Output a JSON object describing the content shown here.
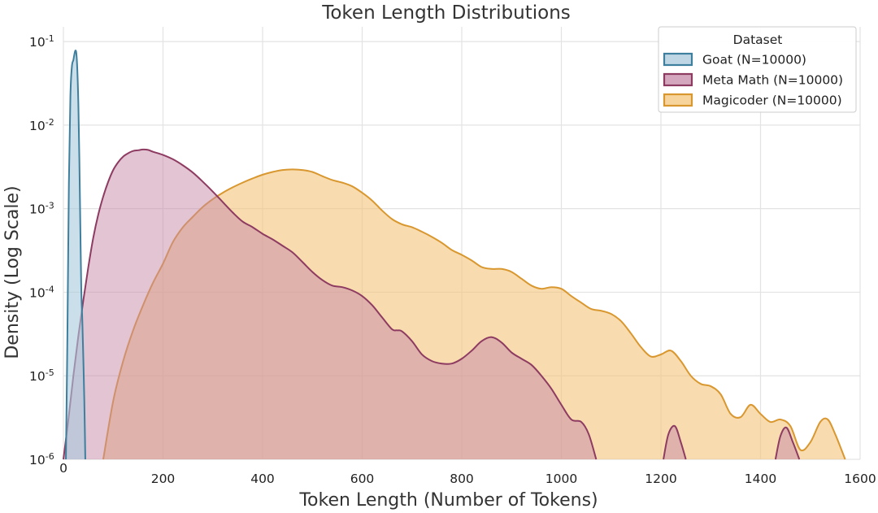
{
  "chart_data": {
    "type": "area",
    "title": "Token Length Distributions",
    "xlabel": "Token Length (Number of Tokens)",
    "ylabel": "Density (Log Scale)",
    "xlim": [
      0,
      1600
    ],
    "ylim": [
      1e-06,
      0.15
    ],
    "yscale": "log",
    "grid": true,
    "x_ticks": [
      0,
      200,
      400,
      600,
      800,
      1000,
      1200,
      1400,
      1600
    ],
    "x_tick_labels": [
      "0",
      "200",
      "400",
      "600",
      "800",
      "1000",
      "1200",
      "1400",
      "1600"
    ],
    "y_ticks": [
      1e-06,
      1e-05,
      0.0001,
      0.001,
      0.01,
      0.1
    ],
    "y_tick_labels": [
      {
        "base": "10",
        "exp": "-6"
      },
      {
        "base": "10",
        "exp": "-5"
      },
      {
        "base": "10",
        "exp": "-4"
      },
      {
        "base": "10",
        "exp": "-3"
      },
      {
        "base": "10",
        "exp": "-2"
      },
      {
        "base": "10",
        "exp": "-1"
      }
    ],
    "legend": {
      "title": "Dataset",
      "position": "top-right",
      "entries": [
        "Goat (N=10000)",
        "Meta Math (N=10000)",
        "Magicoder (N=10000)"
      ]
    },
    "series": [
      {
        "name": "Magicoder (N=10000)",
        "line_color": "#d9972f",
        "fill_color": "#f3c57a",
        "fill_opacity": 0.6,
        "segments": [
          [
            [
              80,
              1e-06
            ],
            [
              100,
              5e-06
            ],
            [
              120,
              1.5e-05
            ],
            [
              140,
              3.5e-05
            ],
            [
              160,
              7e-05
            ],
            [
              180,
              0.00013
            ],
            [
              200,
              0.00022
            ],
            [
              220,
              0.0004
            ],
            [
              240,
              0.0006
            ],
            [
              260,
              0.0008
            ],
            [
              280,
              0.00105
            ],
            [
              300,
              0.0013
            ],
            [
              320,
              0.00155
            ],
            [
              340,
              0.0018
            ],
            [
              360,
              0.00205
            ],
            [
              380,
              0.0023
            ],
            [
              400,
              0.00255
            ],
            [
              420,
              0.00275
            ],
            [
              440,
              0.0029
            ],
            [
              460,
              0.00295
            ],
            [
              480,
              0.0029
            ],
            [
              500,
              0.00275
            ],
            [
              520,
              0.00245
            ],
            [
              540,
              0.0022
            ],
            [
              560,
              0.00205
            ],
            [
              580,
              0.00185
            ],
            [
              600,
              0.00155
            ],
            [
              620,
              0.00125
            ],
            [
              640,
              0.00095
            ],
            [
              660,
              0.00075
            ],
            [
              680,
              0.00065
            ],
            [
              700,
              0.0006
            ],
            [
              720,
              0.00053
            ],
            [
              740,
              0.00046
            ],
            [
              760,
              0.00039
            ],
            [
              780,
              0.00032
            ],
            [
              800,
              0.00028
            ],
            [
              820,
              0.00024
            ],
            [
              840,
              0.0002
            ],
            [
              860,
              0.00019
            ],
            [
              880,
              0.00019
            ],
            [
              900,
              0.000175
            ],
            [
              920,
              0.000145
            ],
            [
              940,
              0.00012
            ],
            [
              960,
              0.00011
            ],
            [
              980,
              0.000115
            ],
            [
              1000,
              0.00011
            ],
            [
              1020,
              9e-05
            ],
            [
              1040,
              7.5e-05
            ],
            [
              1060,
              6.3e-05
            ],
            [
              1080,
              6e-05
            ],
            [
              1100,
              5.5e-05
            ],
            [
              1120,
              4.5e-05
            ],
            [
              1140,
              3.2e-05
            ],
            [
              1160,
              2.2e-05
            ],
            [
              1180,
              1.7e-05
            ],
            [
              1200,
              1.8e-05
            ],
            [
              1220,
              2e-05
            ],
            [
              1240,
              1.5e-05
            ],
            [
              1260,
              1e-05
            ],
            [
              1280,
              8e-06
            ],
            [
              1300,
              7.5e-06
            ],
            [
              1320,
              6e-06
            ],
            [
              1340,
              3.5e-06
            ],
            [
              1360,
              3.2e-06
            ],
            [
              1380,
              4.5e-06
            ],
            [
              1400,
              3.5e-06
            ],
            [
              1420,
              2.8e-06
            ],
            [
              1440,
              3e-06
            ],
            [
              1460,
              2.5e-06
            ],
            [
              1480,
              1.3e-06
            ],
            [
              1500,
              1.6e-06
            ],
            [
              1520,
              2.8e-06
            ],
            [
              1535,
              3e-06
            ],
            [
              1550,
              2e-06
            ],
            [
              1570,
              1e-06
            ]
          ]
        ]
      },
      {
        "name": "Meta Math (N=10000)",
        "line_color": "#8e3b62",
        "fill_color": "#c58aa8",
        "fill_opacity": 0.5,
        "segments": [
          [
            [
              0,
              1e-06
            ],
            [
              10,
              3e-06
            ],
            [
              20,
              1e-05
            ],
            [
              30,
              3e-05
            ],
            [
              40,
              8e-05
            ],
            [
              50,
              0.0002
            ],
            [
              60,
              0.00045
            ],
            [
              70,
              0.00085
            ],
            [
              80,
              0.0014
            ],
            [
              90,
              0.0021
            ],
            [
              100,
              0.0029
            ],
            [
              110,
              0.0036
            ],
            [
              120,
              0.0042
            ],
            [
              130,
              0.0046
            ],
            [
              140,
              0.0049
            ],
            [
              150,
              0.005
            ],
            [
              160,
              0.0051
            ],
            [
              170,
              0.00505
            ],
            [
              180,
              0.0048
            ],
            [
              200,
              0.0044
            ],
            [
              220,
              0.0039
            ],
            [
              240,
              0.0033
            ],
            [
              260,
              0.0027
            ],
            [
              280,
              0.0021
            ],
            [
              300,
              0.0016
            ],
            [
              320,
              0.0012
            ],
            [
              340,
              0.0009
            ],
            [
              360,
              0.0007
            ],
            [
              380,
              0.0006
            ],
            [
              400,
              0.0005
            ],
            [
              420,
              0.00043
            ],
            [
              440,
              0.00036
            ],
            [
              460,
              0.0003
            ],
            [
              480,
              0.00023
            ],
            [
              500,
              0.000175
            ],
            [
              520,
              0.00014
            ],
            [
              540,
              0.00012
            ],
            [
              560,
              0.000115
            ],
            [
              580,
              0.000105
            ],
            [
              600,
              9e-05
            ],
            [
              620,
              7e-05
            ],
            [
              640,
              5e-05
            ],
            [
              660,
              3.6e-05
            ],
            [
              670,
              3.5e-05
            ],
            [
              680,
              3.4e-05
            ],
            [
              700,
              2.6e-05
            ],
            [
              720,
              1.8e-05
            ],
            [
              740,
              1.5e-05
            ],
            [
              760,
              1.4e-05
            ],
            [
              780,
              1.4e-05
            ],
            [
              800,
              1.6e-05
            ],
            [
              820,
              2e-05
            ],
            [
              840,
              2.6e-05
            ],
            [
              860,
              2.9e-05
            ],
            [
              880,
              2.5e-05
            ],
            [
              900,
              1.9e-05
            ],
            [
              920,
              1.6e-05
            ],
            [
              940,
              1.35e-05
            ],
            [
              960,
              1e-05
            ],
            [
              980,
              7e-06
            ],
            [
              1000,
              4.5e-06
            ],
            [
              1020,
              3e-06
            ],
            [
              1040,
              2.8e-06
            ],
            [
              1055,
              2e-06
            ],
            [
              1070,
              1e-06
            ]
          ],
          [
            [
              1205,
              1e-06
            ],
            [
              1215,
              2e-06
            ],
            [
              1228,
              2.5e-06
            ],
            [
              1240,
              1.6e-06
            ],
            [
              1250,
              1e-06
            ]
          ],
          [
            [
              1430,
              1e-06
            ],
            [
              1440,
              1.9e-06
            ],
            [
              1452,
              2.4e-06
            ],
            [
              1465,
              1.6e-06
            ],
            [
              1478,
              1e-06
            ]
          ]
        ]
      },
      {
        "name": "Goat (N=10000)",
        "line_color": "#3f7f9e",
        "fill_color": "#a9c9dc",
        "fill_opacity": 0.6,
        "segments": [
          [
            [
              5,
              1e-06
            ],
            [
              8,
              3e-05
            ],
            [
              11,
              0.002
            ],
            [
              14,
              0.022
            ],
            [
              17,
              0.05
            ],
            [
              20,
              0.06
            ],
            [
              22,
              0.07
            ],
            [
              24,
              0.078
            ],
            [
              26,
              0.072
            ],
            [
              28,
              0.045
            ],
            [
              30,
              0.018
            ],
            [
              32,
              0.004
            ],
            [
              34,
              0.0006
            ],
            [
              36,
              0.0001
            ],
            [
              38,
              4.5e-05
            ],
            [
              40,
              1.6e-05
            ],
            [
              42,
              5e-06
            ],
            [
              44,
              1e-06
            ]
          ]
        ]
      }
    ]
  }
}
